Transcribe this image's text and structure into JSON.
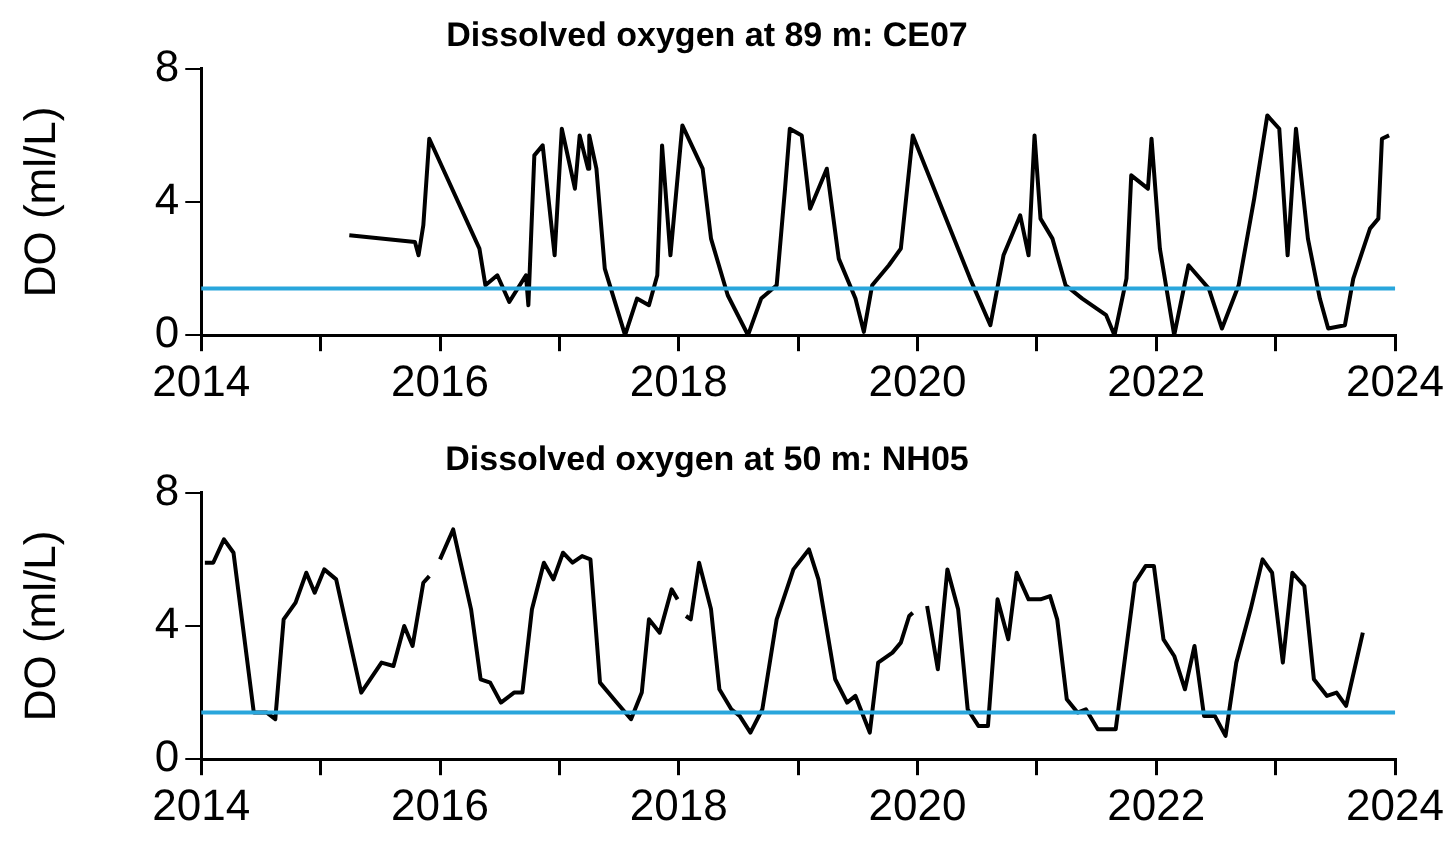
{
  "chart_data": [
    {
      "type": "line",
      "title": "Dissolved oxygen at 89 m: CE07",
      "ylabel": "DO (ml/L)",
      "marker": "none",
      "xlim": [
        2014,
        2024
      ],
      "xticks": [
        2014,
        {
          "value": 2015,
          "label": null
        },
        2016,
        {
          "value": 2017,
          "label": null
        },
        2018,
        {
          "value": 2019,
          "label": null
        },
        2020,
        {
          "value": 2021,
          "label": null
        },
        2022,
        {
          "value": 2023,
          "label": null
        },
        2024
      ],
      "ylim": [
        0,
        8
      ],
      "yticks": [
        0,
        4,
        8
      ],
      "ref_lines": [
        {
          "axis": "y",
          "value": 1.4,
          "color": "#29a6dc"
        }
      ],
      "series": [
        {
          "color": "#000000",
          "x": [
            2015.24,
            2015.79,
            2015.82,
            2015.86,
            2015.91,
            2016.33,
            2016.38,
            2016.48,
            2016.58,
            2016.72,
            2016.74,
            2016.79,
            2016.86,
            2016.96,
            2017.02,
            2017.13,
            2017.17,
            2017.24,
            2017.25,
            2017.31,
            2017.38,
            2017.55,
            2017.65,
            2017.75,
            2017.82,
            2017.86,
            2017.93,
            2018.03,
            2018.2,
            2018.27,
            2018.41,
            2018.58,
            2018.69,
            2018.82,
            2018.89,
            2018.93,
            2019.03,
            2019.1,
            2019.24,
            2019.34,
            2019.48,
            2019.55,
            2019.62,
            2019.76,
            2019.86,
            2019.96,
            2020.44,
            2020.61,
            2020.72,
            2020.86,
            2020.93,
            2020.98,
            2021.03,
            2021.13,
            2021.24,
            2021.38,
            2021.58,
            2021.65,
            2021.75,
            2021.79,
            2021.93,
            2021.96,
            2022.03,
            2022.15,
            2022.27,
            2022.44,
            2022.55,
            2022.69,
            2022.82,
            2022.93,
            2023.03,
            2023.1,
            2023.17,
            2023.27,
            2023.37,
            2023.44,
            2023.58,
            2023.65,
            2023.79,
            2023.86,
            2023.89,
            2023.95
          ],
          "values": [
            3.0,
            2.8,
            2.4,
            3.3,
            5.9,
            2.6,
            1.5,
            1.8,
            1.0,
            1.8,
            0.9,
            5.4,
            5.7,
            2.4,
            6.2,
            4.4,
            6.0,
            5.0,
            6.0,
            5.0,
            2.0,
            0.0,
            1.1,
            0.9,
            1.8,
            5.7,
            2.4,
            6.3,
            5.0,
            2.9,
            1.2,
            0.0,
            1.1,
            1.5,
            4.4,
            6.2,
            6.0,
            3.8,
            5.0,
            2.3,
            1.1,
            0.1,
            1.5,
            2.1,
            2.6,
            6.0,
            1.7,
            0.3,
            2.4,
            3.6,
            2.4,
            6.0,
            3.5,
            2.9,
            1.5,
            1.1,
            0.6,
            0.0,
            1.7,
            4.8,
            4.4,
            5.9,
            2.6,
            0.0,
            2.1,
            1.4,
            0.2,
            1.5,
            4.1,
            6.6,
            6.2,
            2.4,
            6.2,
            2.9,
            1.1,
            0.2,
            0.3,
            1.7,
            3.2,
            3.5,
            5.9,
            6.0
          ]
        }
      ]
    },
    {
      "type": "line",
      "title": "Dissolved oxygen at 50 m: NH05",
      "ylabel": "DO (ml/L)",
      "marker": "none",
      "xlim": [
        2014,
        2024
      ],
      "xticks": [
        2014,
        {
          "value": 2015,
          "label": null
        },
        2016,
        {
          "value": 2017,
          "label": null
        },
        2018,
        {
          "value": 2019,
          "label": null
        },
        2020,
        {
          "value": 2021,
          "label": null
        },
        2022,
        {
          "value": 2023,
          "label": null
        },
        2024
      ],
      "ylim": [
        0,
        8
      ],
      "yticks": [
        0,
        4,
        8
      ],
      "ref_lines": [
        {
          "axis": "y",
          "value": 1.4,
          "color": "#29a6dc"
        }
      ],
      "series": [
        {
          "color": "#000000",
          "x": [
            2014.03,
            2014.1,
            2014.19,
            2014.27,
            2014.44,
            2014.55,
            2014.62,
            2014.69,
            2014.79,
            2014.88,
            2014.95,
            2015.03,
            2015.13,
            2015.34,
            2015.51,
            2015.61,
            2015.7,
            2015.77,
            2015.86,
            2015.91,
            2015.95,
            2016.0,
            2016.11,
            2016.26,
            2016.34,
            2016.42,
            2016.51,
            2016.62,
            2016.69,
            2016.77,
            2016.87,
            2016.95,
            2017.03,
            2017.11,
            2017.19,
            2017.26,
            2017.34,
            2017.48,
            2017.6,
            2017.69,
            2017.75,
            2017.84,
            2017.94,
            2017.99,
            2018.02,
            2018.06,
            2018.1,
            2018.17,
            2018.27,
            2018.34,
            2018.44,
            2018.51,
            2018.6,
            2018.7,
            2018.82,
            2018.96,
            2019.09,
            2019.17,
            2019.31,
            2019.41,
            2019.48,
            2019.6,
            2019.67,
            2019.79,
            2019.86,
            2019.93,
            2019.96,
            2020.02,
            2020.08,
            2020.17,
            2020.25,
            2020.34,
            2020.42,
            2020.51,
            2020.59,
            2020.67,
            2020.76,
            2020.83,
            2020.93,
            2021.03,
            2021.11,
            2021.17,
            2021.25,
            2021.34,
            2021.41,
            2021.51,
            2021.66,
            2021.82,
            2021.91,
            2021.98,
            2022.06,
            2022.15,
            2022.24,
            2022.32,
            2022.4,
            2022.49,
            2022.58,
            2022.67,
            2022.79,
            2022.89,
            2022.97,
            2023.06,
            2023.14,
            2023.24,
            2023.32,
            2023.43,
            2023.51,
            2023.59,
            2023.66,
            2023.73
          ],
          "values": [
            5.9,
            5.9,
            6.6,
            6.2,
            1.4,
            1.4,
            1.2,
            4.2,
            4.7,
            5.6,
            5.0,
            5.7,
            5.4,
            2.0,
            2.9,
            2.8,
            4.0,
            3.4,
            5.3,
            5.5,
            null,
            6.0,
            6.9,
            4.5,
            2.4,
            2.3,
            1.7,
            2.0,
            2.0,
            4.5,
            5.9,
            5.4,
            6.2,
            5.9,
            6.1,
            6.0,
            2.3,
            1.7,
            1.2,
            2.0,
            4.2,
            3.8,
            5.1,
            4.8,
            null,
            4.3,
            4.2,
            5.9,
            4.5,
            2.1,
            1.5,
            1.3,
            0.8,
            1.5,
            4.2,
            5.7,
            6.3,
            5.4,
            2.4,
            1.7,
            1.9,
            0.8,
            2.9,
            3.2,
            3.5,
            4.3,
            4.4,
            null,
            4.6,
            2.7,
            5.7,
            4.5,
            1.5,
            1.0,
            1.0,
            4.8,
            3.6,
            5.6,
            4.8,
            4.8,
            4.9,
            4.2,
            1.8,
            1.4,
            1.5,
            0.9,
            0.9,
            5.3,
            5.8,
            5.8,
            3.6,
            3.1,
            2.1,
            3.4,
            1.3,
            1.3,
            0.7,
            2.9,
            4.5,
            6.0,
            5.6,
            2.9,
            5.6,
            5.2,
            2.4,
            1.9,
            2.0,
            1.6,
            2.7,
            3.8
          ]
        }
      ]
    }
  ]
}
